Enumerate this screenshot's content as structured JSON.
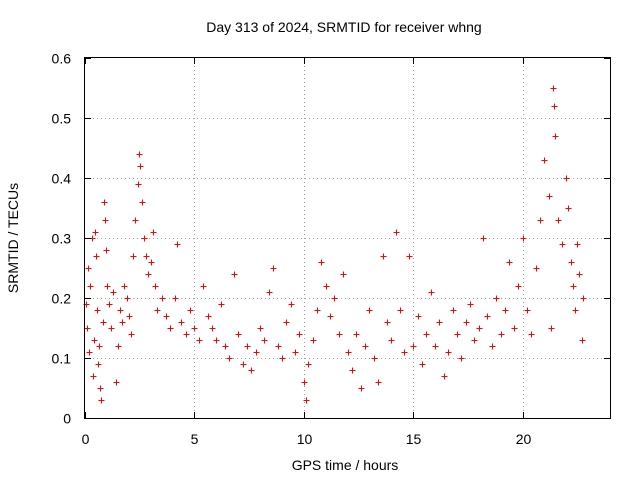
{
  "chart_data": {
    "type": "scatter",
    "title": "Day 313 of 2024, SRMTID for receiver whng",
    "xlabel": "GPS time / hours",
    "ylabel": "SRMTID / TECUs",
    "xlim": [
      0,
      24
    ],
    "ylim": [
      0,
      0.6
    ],
    "xticks": [
      0,
      5,
      10,
      15,
      20
    ],
    "yticks": [
      0,
      0.1,
      0.2,
      0.3,
      0.4,
      0.5,
      0.6
    ],
    "xtick_labels": [
      "0",
      "5",
      "10",
      "15",
      "20"
    ],
    "ytick_labels": [
      "0",
      "0.1",
      "0.2",
      "0.3",
      "0.4",
      "0.5",
      "0.6"
    ],
    "grid": true,
    "marker": "+",
    "color": "#ff0000",
    "data_range_hours": [
      0,
      22.75
    ],
    "series": [
      {
        "name": "SRMTID",
        "points": [
          [
            0.05,
            0.19
          ],
          [
            0.1,
            0.15
          ],
          [
            0.15,
            0.25
          ],
          [
            0.2,
            0.11
          ],
          [
            0.25,
            0.22
          ],
          [
            0.3,
            0.3
          ],
          [
            0.35,
            0.07
          ],
          [
            0.4,
            0.13
          ],
          [
            0.45,
            0.31
          ],
          [
            0.5,
            0.27
          ],
          [
            0.55,
            0.18
          ],
          [
            0.6,
            0.09
          ],
          [
            0.65,
            0.12
          ],
          [
            0.7,
            0.05
          ],
          [
            0.75,
            0.03
          ],
          [
            0.8,
            0.16
          ],
          [
            0.85,
            0.36
          ],
          [
            0.9,
            0.33
          ],
          [
            0.95,
            0.28
          ],
          [
            1.0,
            0.22
          ],
          [
            1.1,
            0.19
          ],
          [
            1.2,
            0.15
          ],
          [
            1.3,
            0.21
          ],
          [
            1.4,
            0.06
          ],
          [
            1.5,
            0.12
          ],
          [
            1.6,
            0.18
          ],
          [
            1.7,
            0.16
          ],
          [
            1.8,
            0.22
          ],
          [
            1.9,
            0.2
          ],
          [
            2.0,
            0.17
          ],
          [
            2.1,
            0.14
          ],
          [
            2.2,
            0.27
          ],
          [
            2.3,
            0.33
          ],
          [
            2.4,
            0.39
          ],
          [
            2.45,
            0.44
          ],
          [
            2.5,
            0.42
          ],
          [
            2.6,
            0.36
          ],
          [
            2.7,
            0.3
          ],
          [
            2.8,
            0.27
          ],
          [
            2.9,
            0.24
          ],
          [
            3.0,
            0.26
          ],
          [
            3.1,
            0.31
          ],
          [
            3.2,
            0.22
          ],
          [
            3.3,
            0.18
          ],
          [
            3.5,
            0.2
          ],
          [
            3.7,
            0.17
          ],
          [
            3.9,
            0.15
          ],
          [
            4.1,
            0.2
          ],
          [
            4.2,
            0.29
          ],
          [
            4.4,
            0.16
          ],
          [
            4.6,
            0.14
          ],
          [
            4.8,
            0.18
          ],
          [
            5.0,
            0.15
          ],
          [
            5.2,
            0.13
          ],
          [
            5.4,
            0.22
          ],
          [
            5.6,
            0.17
          ],
          [
            5.8,
            0.15
          ],
          [
            6.0,
            0.13
          ],
          [
            6.2,
            0.19
          ],
          [
            6.4,
            0.12
          ],
          [
            6.6,
            0.1
          ],
          [
            6.8,
            0.24
          ],
          [
            7.0,
            0.14
          ],
          [
            7.2,
            0.09
          ],
          [
            7.4,
            0.12
          ],
          [
            7.6,
            0.08
          ],
          [
            7.8,
            0.11
          ],
          [
            8.0,
            0.15
          ],
          [
            8.2,
            0.13
          ],
          [
            8.4,
            0.21
          ],
          [
            8.6,
            0.25
          ],
          [
            8.8,
            0.12
          ],
          [
            9.0,
            0.1
          ],
          [
            9.2,
            0.16
          ],
          [
            9.4,
            0.19
          ],
          [
            9.6,
            0.11
          ],
          [
            9.8,
            0.14
          ],
          [
            10.0,
            0.06
          ],
          [
            10.1,
            0.03
          ],
          [
            10.2,
            0.09
          ],
          [
            10.4,
            0.13
          ],
          [
            10.6,
            0.18
          ],
          [
            10.8,
            0.26
          ],
          [
            11.0,
            0.22
          ],
          [
            11.2,
            0.17
          ],
          [
            11.4,
            0.2
          ],
          [
            11.6,
            0.14
          ],
          [
            11.8,
            0.24
          ],
          [
            12.0,
            0.11
          ],
          [
            12.2,
            0.08
          ],
          [
            12.4,
            0.14
          ],
          [
            12.6,
            0.05
          ],
          [
            12.8,
            0.12
          ],
          [
            13.0,
            0.18
          ],
          [
            13.2,
            0.1
          ],
          [
            13.4,
            0.06
          ],
          [
            13.6,
            0.27
          ],
          [
            13.8,
            0.16
          ],
          [
            14.0,
            0.13
          ],
          [
            14.2,
            0.31
          ],
          [
            14.4,
            0.18
          ],
          [
            14.6,
            0.11
          ],
          [
            14.8,
            0.27
          ],
          [
            15.0,
            0.12
          ],
          [
            15.2,
            0.17
          ],
          [
            15.4,
            0.09
          ],
          [
            15.6,
            0.14
          ],
          [
            15.8,
            0.21
          ],
          [
            16.0,
            0.12
          ],
          [
            16.2,
            0.16
          ],
          [
            16.4,
            0.07
          ],
          [
            16.6,
            0.11
          ],
          [
            16.8,
            0.18
          ],
          [
            17.0,
            0.14
          ],
          [
            17.2,
            0.1
          ],
          [
            17.4,
            0.16
          ],
          [
            17.6,
            0.19
          ],
          [
            17.8,
            0.13
          ],
          [
            18.0,
            0.15
          ],
          [
            18.2,
            0.3
          ],
          [
            18.4,
            0.17
          ],
          [
            18.6,
            0.12
          ],
          [
            18.8,
            0.2
          ],
          [
            19.0,
            0.14
          ],
          [
            19.2,
            0.18
          ],
          [
            19.4,
            0.26
          ],
          [
            19.6,
            0.15
          ],
          [
            19.8,
            0.22
          ],
          [
            20.0,
            0.3
          ],
          [
            20.2,
            0.18
          ],
          [
            20.4,
            0.14
          ],
          [
            20.6,
            0.25
          ],
          [
            20.8,
            0.33
          ],
          [
            21.0,
            0.43
          ],
          [
            21.2,
            0.37
          ],
          [
            21.3,
            0.15
          ],
          [
            21.4,
            0.55
          ],
          [
            21.45,
            0.52
          ],
          [
            21.5,
            0.47
          ],
          [
            21.6,
            0.33
          ],
          [
            21.8,
            0.29
          ],
          [
            22.0,
            0.4
          ],
          [
            22.1,
            0.35
          ],
          [
            22.2,
            0.26
          ],
          [
            22.3,
            0.22
          ],
          [
            22.4,
            0.18
          ],
          [
            22.5,
            0.29
          ],
          [
            22.6,
            0.24
          ],
          [
            22.7,
            0.13
          ],
          [
            22.75,
            0.2
          ]
        ]
      }
    ]
  }
}
